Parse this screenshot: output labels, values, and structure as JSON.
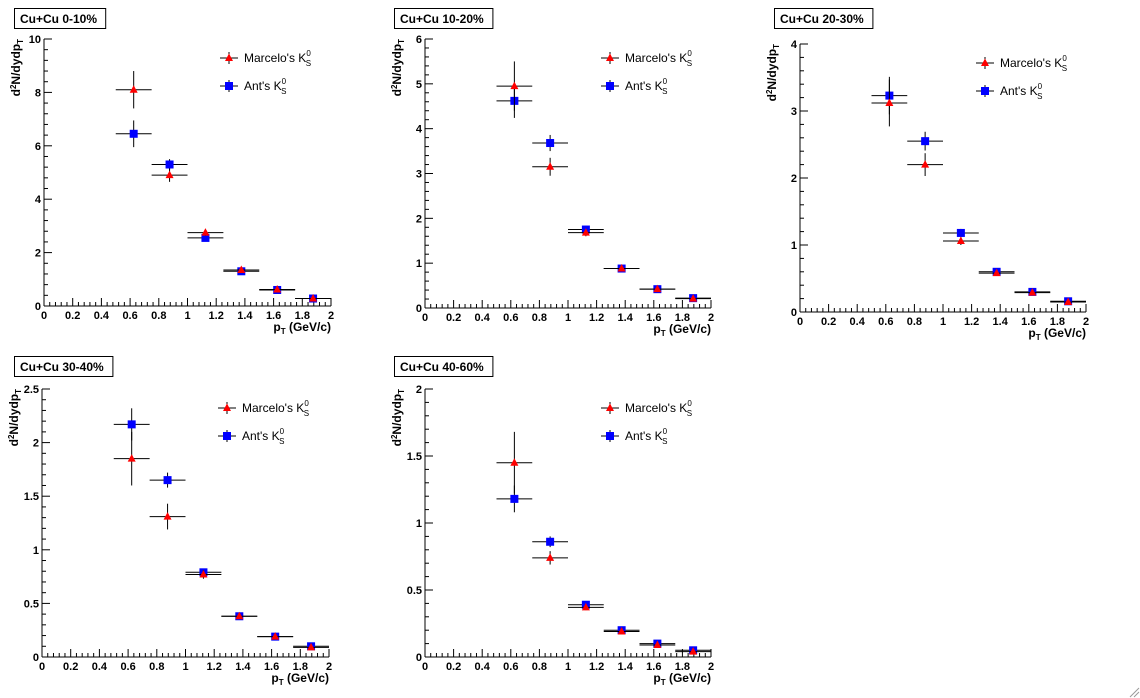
{
  "legend_labels": {
    "marcelo": "Marcelo's K",
    "ant": "Ant's K",
    "sub": "S",
    "sup": "0"
  },
  "axis_label_parts": {
    "x_main": "p",
    "x_sub": "T",
    "x_unit": " (GeV/c)",
    "y_main": "N/dydp",
    "y_sub": "T"
  },
  "colors": {
    "marcelo": "#ff0000",
    "ant": "#0000ff",
    "axis": "#000000",
    "frame": "#000000"
  },
  "chart_data": [
    {
      "type": "scatter",
      "title": "Cu+Cu 0-10%",
      "y_label_prefix": "d",
      "y_label_exp": "2",
      "xlim": [
        0,
        2
      ],
      "ylim": [
        0,
        10
      ],
      "x_ticks": [
        "0",
        "0.2",
        "0.4",
        "0.6",
        "0.8",
        "1",
        "1.2",
        "1.4",
        "1.6",
        "1.8",
        "2"
      ],
      "y_ticks": [
        {
          "v": 0,
          "label": "0"
        },
        {
          "v": 2,
          "label": "2"
        },
        {
          "v": 4,
          "label": "4"
        },
        {
          "v": 6,
          "label": "6"
        },
        {
          "v": 8,
          "label": "8"
        },
        {
          "v": 10,
          "label": "10"
        }
      ],
      "series": [
        {
          "name": "Marcelo's K_S^0",
          "marker": "triangle",
          "x": [
            0.625,
            0.875,
            1.125,
            1.375,
            1.625,
            1.875
          ],
          "y": [
            8.1,
            4.9,
            2.75,
            1.35,
            0.62,
            0.28
          ],
          "yerr": [
            0.7,
            0.25,
            0.12,
            0.06,
            0.04,
            0.02
          ],
          "xerr": [
            0.125,
            0.125,
            0.125,
            0.125,
            0.125,
            0.125
          ]
        },
        {
          "name": "Ant's K_S^0",
          "marker": "square",
          "x": [
            0.625,
            0.875,
            1.125,
            1.375,
            1.625,
            1.875
          ],
          "y": [
            6.45,
            5.3,
            2.55,
            1.3,
            0.6,
            0.28
          ],
          "yerr": [
            0.5,
            0.2,
            0.12,
            0.06,
            0.04,
            0.02
          ],
          "xerr": [
            0.125,
            0.125,
            0.125,
            0.125,
            0.125,
            0.125
          ]
        }
      ]
    },
    {
      "type": "scatter",
      "title": "Cu+Cu 10-20%",
      "y_label_prefix": "d",
      "y_label_exp": "2",
      "xlim": [
        0,
        2
      ],
      "ylim": [
        0,
        6
      ],
      "x_ticks": [
        "0",
        "0.2",
        "0.4",
        "0.6",
        "0.8",
        "1",
        "1.2",
        "1.4",
        "1.6",
        "1.8",
        "2"
      ],
      "y_ticks": [
        {
          "v": 0,
          "label": "0"
        },
        {
          "v": 1,
          "label": "1"
        },
        {
          "v": 2,
          "label": "2"
        },
        {
          "v": 3,
          "label": "3"
        },
        {
          "v": 4,
          "label": "4"
        },
        {
          "v": 5,
          "label": "5"
        },
        {
          "v": 6,
          "label": "6"
        }
      ],
      "series": [
        {
          "name": "Marcelo's K_S^0",
          "marker": "triangle",
          "x": [
            0.625,
            0.875,
            1.125,
            1.375,
            1.625,
            1.875
          ],
          "y": [
            4.95,
            3.15,
            1.68,
            0.88,
            0.42,
            0.21
          ],
          "yerr": [
            0.55,
            0.2,
            0.08,
            0.04,
            0.03,
            0.02
          ],
          "xerr": [
            0.125,
            0.125,
            0.125,
            0.125,
            0.125,
            0.125
          ]
        },
        {
          "name": "Ant's K_S^0",
          "marker": "square",
          "x": [
            0.625,
            0.875,
            1.125,
            1.375,
            1.625,
            1.875
          ],
          "y": [
            4.62,
            3.68,
            1.75,
            0.88,
            0.42,
            0.22
          ],
          "yerr": [
            0.38,
            0.18,
            0.08,
            0.04,
            0.03,
            0.02
          ],
          "xerr": [
            0.125,
            0.125,
            0.125,
            0.125,
            0.125,
            0.125
          ]
        }
      ]
    },
    {
      "type": "scatter",
      "title": "Cu+Cu 20-30%",
      "y_label_prefix": "d",
      "y_label_exp": "2",
      "xlim": [
        0,
        2
      ],
      "ylim": [
        0,
        4
      ],
      "x_ticks": [
        "0",
        "0.2",
        "0.4",
        "0.6",
        "0.8",
        "1",
        "1.2",
        "1.4",
        "1.6",
        "1.8",
        "2"
      ],
      "y_ticks": [
        {
          "v": 0,
          "label": "0"
        },
        {
          "v": 1,
          "label": "1"
        },
        {
          "v": 2,
          "label": "2"
        },
        {
          "v": 3,
          "label": "3"
        },
        {
          "v": 4,
          "label": "4"
        }
      ],
      "series": [
        {
          "name": "Marcelo's K_S^0",
          "marker": "triangle",
          "x": [
            0.625,
            0.875,
            1.125,
            1.375,
            1.625,
            1.875
          ],
          "y": [
            3.12,
            2.2,
            1.06,
            0.58,
            0.29,
            0.15
          ],
          "yerr": [
            0.35,
            0.17,
            0.06,
            0.03,
            0.02,
            0.02
          ],
          "xerr": [
            0.125,
            0.125,
            0.125,
            0.125,
            0.125,
            0.125
          ]
        },
        {
          "name": "Ant's K_S^0",
          "marker": "square",
          "x": [
            0.625,
            0.875,
            1.125,
            1.375,
            1.625,
            1.875
          ],
          "y": [
            3.23,
            2.55,
            1.18,
            0.6,
            0.3,
            0.16
          ],
          "yerr": [
            0.28,
            0.14,
            0.06,
            0.03,
            0.02,
            0.02
          ],
          "xerr": [
            0.125,
            0.125,
            0.125,
            0.125,
            0.125,
            0.125
          ]
        }
      ]
    },
    {
      "type": "scatter",
      "title": "Cu+Cu 30-40%",
      "y_label_prefix": "d",
      "y_label_exp": "2",
      "xlim": [
        0,
        2
      ],
      "ylim": [
        0,
        2.5
      ],
      "x_ticks": [
        "0",
        "0.2",
        "0.4",
        "0.6",
        "0.8",
        "1",
        "1.2",
        "1.4",
        "1.6",
        "1.8",
        "2"
      ],
      "y_ticks": [
        {
          "v": 0,
          "label": "0"
        },
        {
          "v": 0.5,
          "label": "0.5"
        },
        {
          "v": 1,
          "label": "1"
        },
        {
          "v": 1.5,
          "label": "1.5"
        },
        {
          "v": 2,
          "label": "2"
        },
        {
          "v": 2.5,
          "label": "2.5"
        }
      ],
      "series": [
        {
          "name": "Marcelo's K_S^0",
          "marker": "triangle",
          "x": [
            0.625,
            0.875,
            1.125,
            1.375,
            1.625,
            1.875
          ],
          "y": [
            1.85,
            1.31,
            0.77,
            0.38,
            0.19,
            0.09
          ],
          "yerr": [
            0.25,
            0.12,
            0.04,
            0.02,
            0.01,
            0.01
          ],
          "xerr": [
            0.125,
            0.125,
            0.125,
            0.125,
            0.125,
            0.125
          ]
        },
        {
          "name": "Ant's K_S^0",
          "marker": "square",
          "x": [
            0.625,
            0.875,
            1.125,
            1.375,
            1.625,
            1.875
          ],
          "y": [
            2.17,
            1.65,
            0.79,
            0.38,
            0.19,
            0.1
          ],
          "yerr": [
            0.15,
            0.07,
            0.03,
            0.02,
            0.01,
            0.01
          ],
          "xerr": [
            0.125,
            0.125,
            0.125,
            0.125,
            0.125,
            0.125
          ]
        }
      ]
    },
    {
      "type": "scatter",
      "title": "Cu+Cu 40-60%",
      "y_label_prefix": "d",
      "y_label_exp": "2",
      "xlim": [
        0,
        2
      ],
      "ylim": [
        0,
        2
      ],
      "x_ticks": [
        "0",
        "0.2",
        "0.4",
        "0.6",
        "0.8",
        "1",
        "1.2",
        "1.4",
        "1.6",
        "1.8",
        "2"
      ],
      "y_ticks": [
        {
          "v": 0,
          "label": "0"
        },
        {
          "v": 0.5,
          "label": "0.5"
        },
        {
          "v": 1,
          "label": "1"
        },
        {
          "v": 1.5,
          "label": "1.5"
        },
        {
          "v": 2,
          "label": "2"
        }
      ],
      "series": [
        {
          "name": "Marcelo's K_S^0",
          "marker": "triangle",
          "x": [
            0.625,
            0.875,
            1.125,
            1.375,
            1.625,
            1.875
          ],
          "y": [
            1.45,
            0.74,
            0.37,
            0.19,
            0.09,
            0.04
          ],
          "yerr": [
            0.23,
            0.05,
            0.02,
            0.01,
            0.01,
            0.005
          ],
          "xerr": [
            0.125,
            0.125,
            0.125,
            0.125,
            0.125,
            0.125
          ]
        },
        {
          "name": "Ant's K_S^0",
          "marker": "square",
          "x": [
            0.625,
            0.875,
            1.125,
            1.375,
            1.625,
            1.875
          ],
          "y": [
            1.18,
            0.86,
            0.39,
            0.2,
            0.1,
            0.05
          ],
          "yerr": [
            0.1,
            0.04,
            0.02,
            0.01,
            0.01,
            0.005
          ],
          "xerr": [
            0.125,
            0.125,
            0.125,
            0.125,
            0.125,
            0.125
          ]
        }
      ]
    }
  ]
}
